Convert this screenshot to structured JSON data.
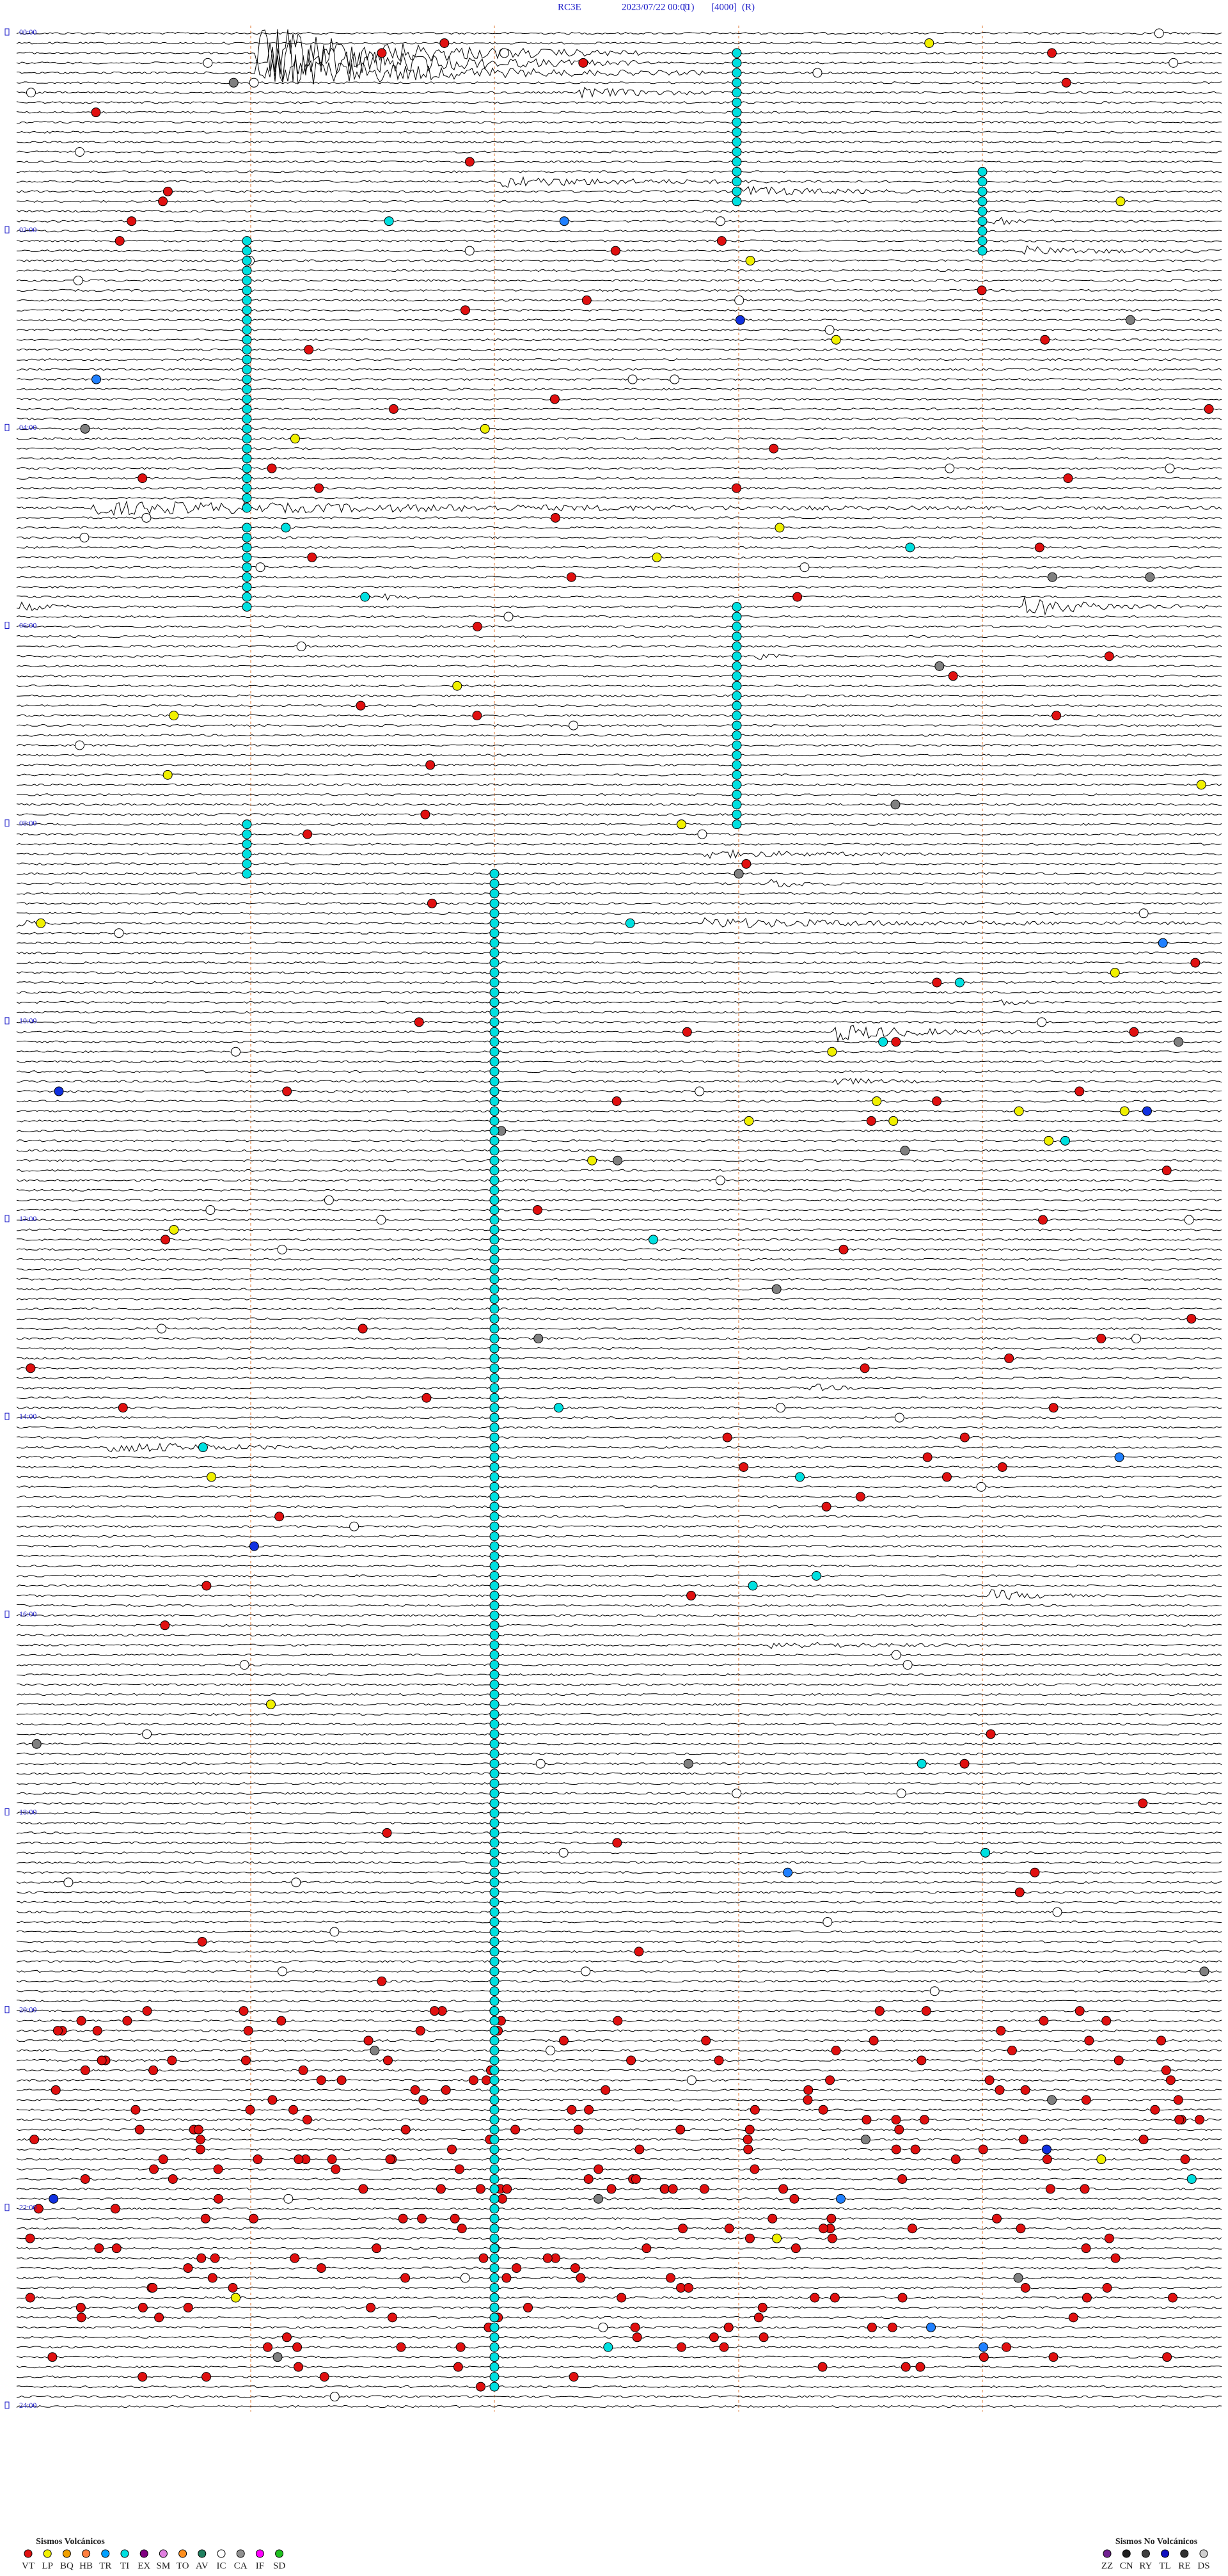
{
  "header": {
    "items": [
      "RC3E",
      "2023/07/22 00:00",
      "(1)",
      "[4000]",
      "(R)"
    ]
  },
  "hour_labels": [
    "00:00",
    "02:00",
    "04:00",
    "06:00",
    "08:00",
    "10:00",
    "12:00",
    "14:00",
    "16:00",
    "18:00",
    "20:00",
    "22:00",
    "24:00"
  ],
  "legend": {
    "volcanic": {
      "title": "Sismos Volcánicos",
      "items": [
        "VT",
        "LP",
        "BQ",
        "HB",
        "TR",
        "TI",
        "EX",
        "SM",
        "TO",
        "AV",
        "IC",
        "CA",
        "IF",
        "SD"
      ]
    },
    "non_volcanic": {
      "title": "Sismos No Volcánicos",
      "items": [
        "ZZ",
        "CN",
        "RY",
        "TL",
        "RE",
        "DS"
      ]
    }
  }
}
